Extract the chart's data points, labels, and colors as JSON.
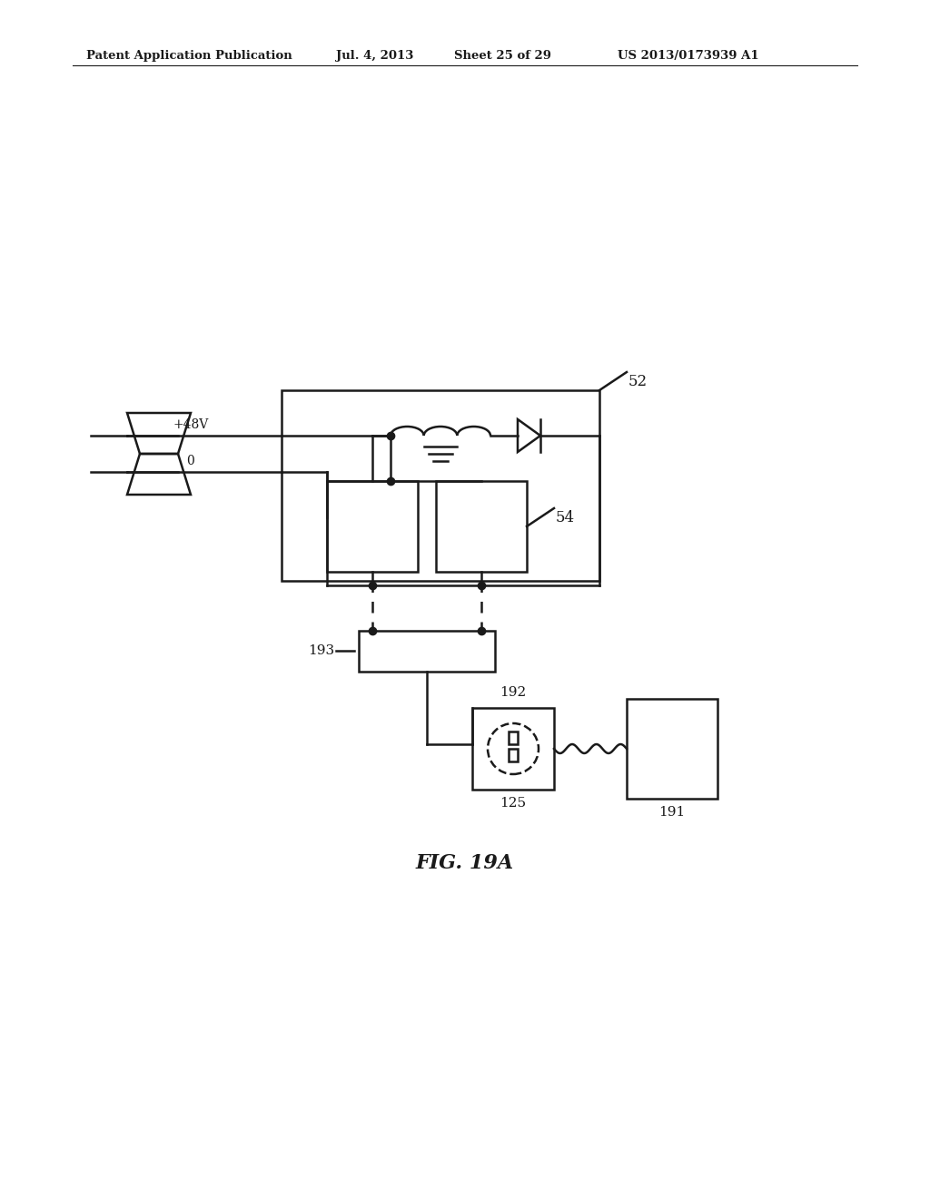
{
  "bg_color": "#ffffff",
  "line_color": "#1a1a1a",
  "header_text": "Patent Application Publication",
  "header_date": "Jul. 4, 2013",
  "header_sheet": "Sheet 25 of 29",
  "header_patent": "US 2013/0173939 A1",
  "figure_label": "FIG. 19A",
  "label_52": "52",
  "label_54": "54",
  "label_193": "193",
  "label_192": "192",
  "label_125": "125",
  "label_191": "191",
  "label_48v": "+48V",
  "label_0": "0"
}
